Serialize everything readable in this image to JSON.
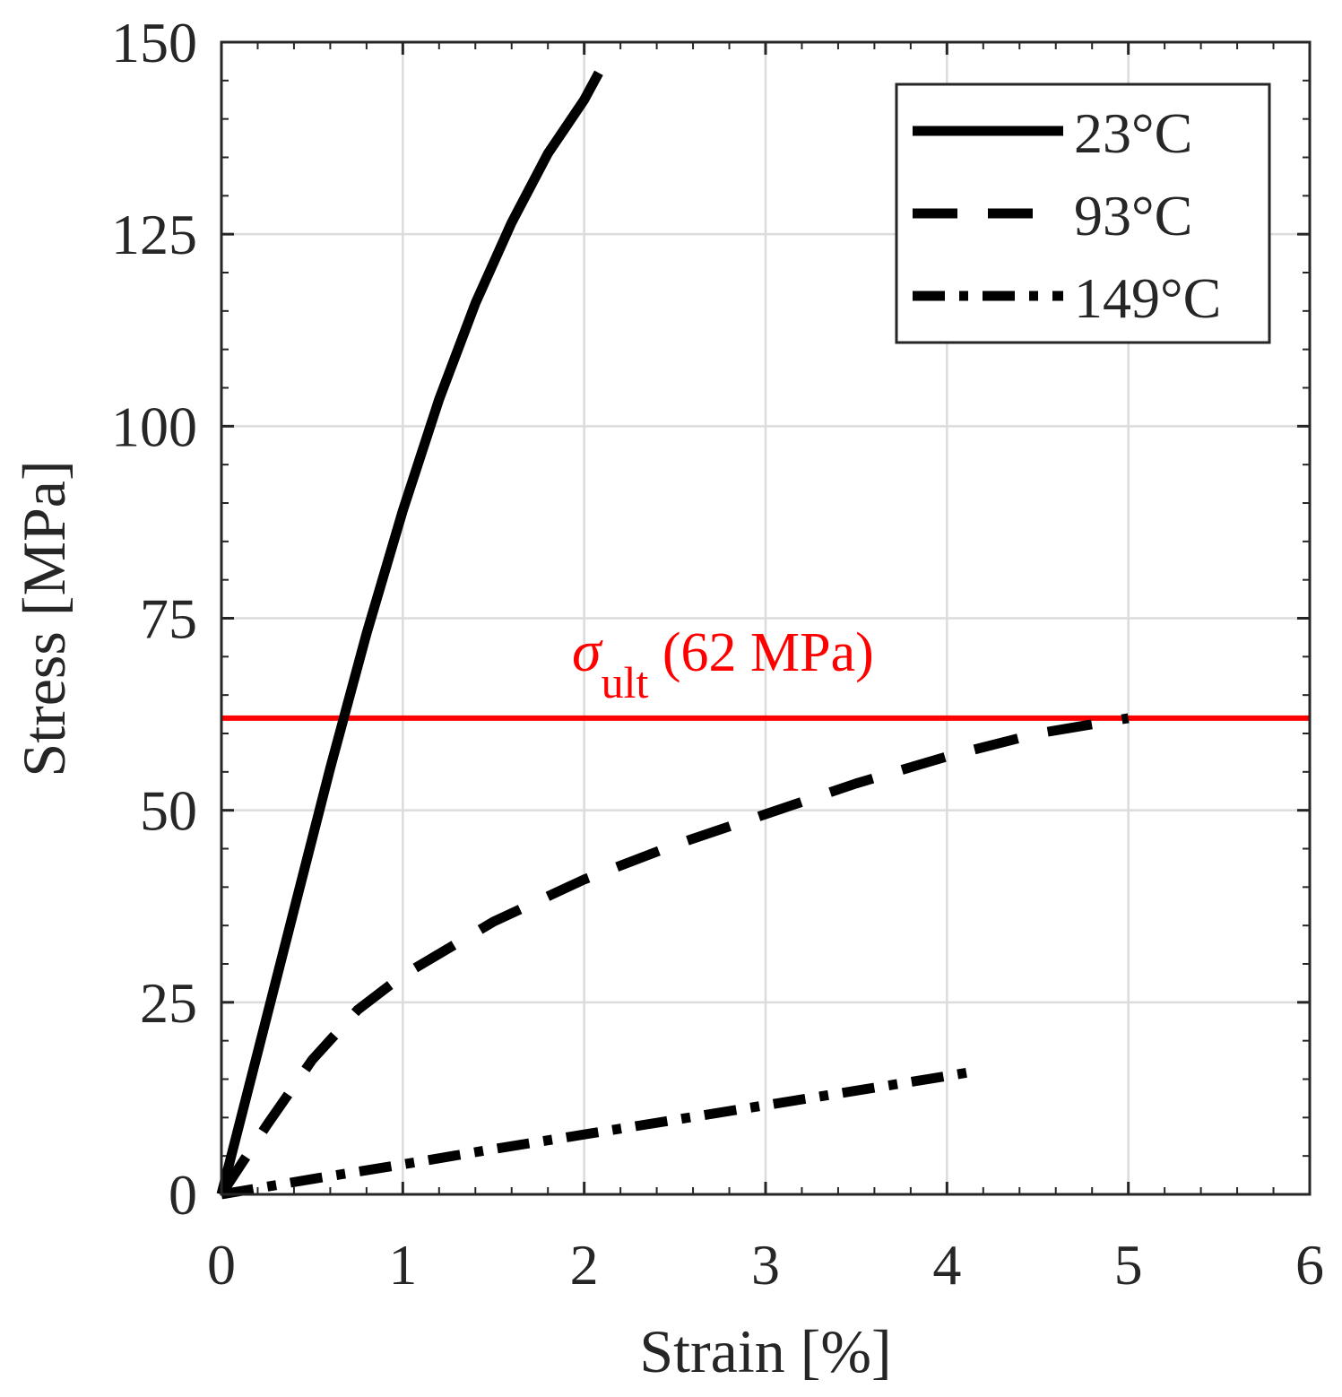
{
  "chart_data": {
    "type": "line",
    "title": "",
    "xlabel": "Strain [%]",
    "ylabel": "Stress [MPa]",
    "xlim": [
      0,
      6
    ],
    "ylim": [
      0,
      150
    ],
    "xticks": [
      0,
      1,
      2,
      3,
      4,
      5,
      6
    ],
    "xtick_labels": [
      "0",
      "1",
      "2",
      "3",
      "4",
      "5",
      "6"
    ],
    "yticks": [
      0,
      25,
      50,
      75,
      100,
      125,
      150
    ],
    "ytick_labels": [
      "0",
      "25",
      "50",
      "75",
      "100",
      "125",
      "150"
    ],
    "grid": true,
    "legend_position": "top-right",
    "series": [
      {
        "name": "23°C",
        "style": "solid",
        "color": "#000000",
        "x": [
          0,
          0.2,
          0.4,
          0.6,
          0.8,
          1.0,
          1.2,
          1.4,
          1.6,
          1.8,
          2.0,
          2.08
        ],
        "y": [
          0,
          18.5,
          37,
          55.5,
          73,
          89,
          103.5,
          116,
          126.5,
          135.5,
          142.5,
          146
        ]
      },
      {
        "name": "93°C",
        "style": "dashed",
        "color": "#000000",
        "x": [
          0,
          0.25,
          0.5,
          0.75,
          1.0,
          1.5,
          2.0,
          2.5,
          3.0,
          3.5,
          4.0,
          4.5,
          5.0
        ],
        "y": [
          0,
          9,
          17.5,
          24,
          28.5,
          35.5,
          41,
          45.5,
          49.5,
          53.5,
          57,
          60,
          62
        ]
      },
      {
        "name": "149°C",
        "style": "dash-dot",
        "color": "#000000",
        "x": [
          0,
          0.5,
          1.0,
          1.5,
          2.0,
          2.5,
          3.0,
          3.5,
          4.0,
          4.15
        ],
        "y": [
          0,
          2,
          3.9,
          5.9,
          7.8,
          9.7,
          11.6,
          13.5,
          15.4,
          16
        ]
      }
    ],
    "annotations": [
      {
        "type": "hline",
        "y": 62,
        "color": "#ff0000",
        "symbol": "σ",
        "subscript": "ult",
        "text": " (62 MPa)"
      }
    ]
  }
}
